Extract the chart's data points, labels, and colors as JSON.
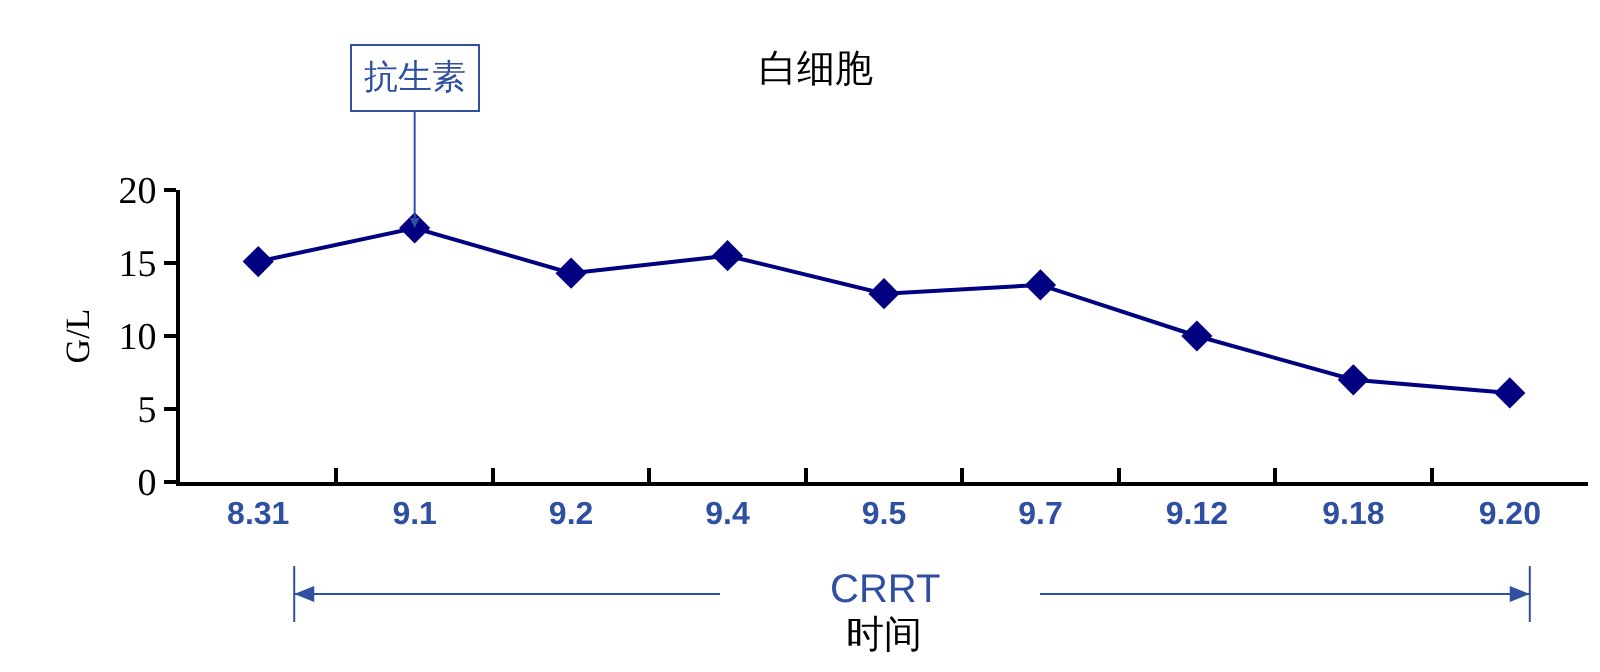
{
  "chart_data": {
    "type": "line",
    "title": "白细胞",
    "xlabel": "时间",
    "ylabel": "G/L",
    "categories": [
      "8.31",
      "9.1",
      "9.2",
      "9.4",
      "9.5",
      "9.7",
      "9.12",
      "9.18",
      "9.20"
    ],
    "series": [
      {
        "color": "#000080",
        "values": [
          15.1,
          17.4,
          14.3,
          15.5,
          12.9,
          13.5,
          10.0,
          7.0,
          6.1
        ]
      }
    ],
    "ylim": [
      0,
      20
    ],
    "yticks": [
      0,
      5,
      10,
      15,
      20
    ],
    "grid": false,
    "marker": "diamond",
    "line_style": "solid",
    "annotations": [
      {
        "text": "抗生素",
        "x": "9.1",
        "y": 17.4
      },
      "CRRT"
    ]
  }
}
